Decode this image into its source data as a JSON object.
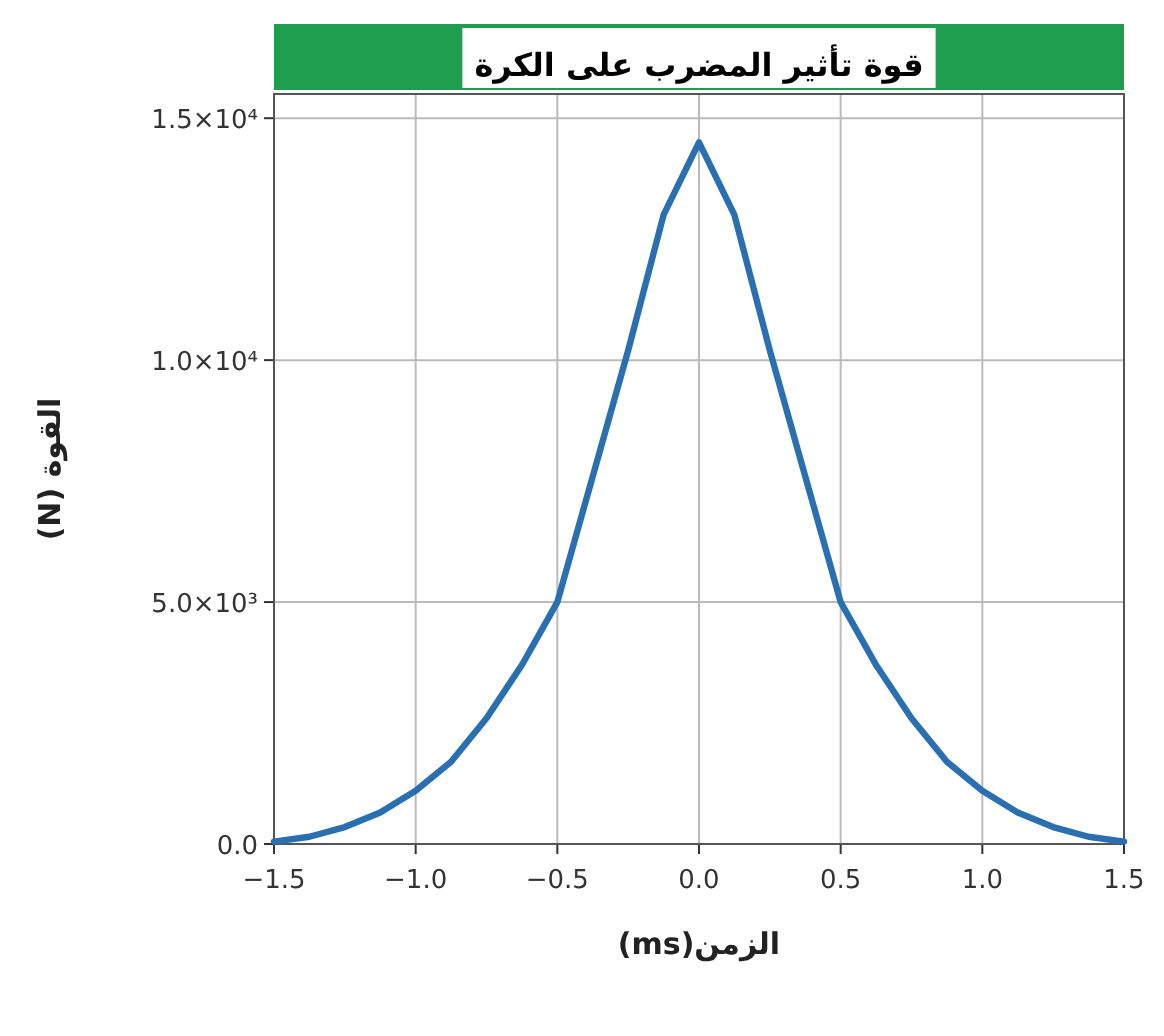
{
  "chart_data": {
    "type": "line",
    "title": "قوة تأثير المضرب على الكرة",
    "xlabel": "الزمن(ms)",
    "ylabel": "القوة (N)",
    "x": [
      -1.5,
      -1.375,
      -1.25,
      -1.125,
      -1.0,
      -0.875,
      -0.75,
      -0.625,
      -0.5,
      -0.375,
      -0.25,
      -0.125,
      0.0,
      0.125,
      0.25,
      0.375,
      0.5,
      0.625,
      0.75,
      0.875,
      1.0,
      1.125,
      1.25,
      1.375,
      1.5
    ],
    "series": [
      {
        "color": "#2a6fb0",
        "values": [
          50,
          150,
          350,
          650,
          1100,
          1700,
          2600,
          3700,
          5000,
          7600,
          10200,
          13000,
          14500,
          13000,
          10200,
          7600,
          5000,
          3700,
          2600,
          1700,
          1100,
          650,
          350,
          150,
          50
        ]
      }
    ],
    "xlim": [
      -1.5,
      1.5
    ],
    "ylim": [
      0,
      15500
    ],
    "xticks": [
      {
        "value": -1.5,
        "label": "−1.5"
      },
      {
        "value": -1.0,
        "label": "−1.0"
      },
      {
        "value": -0.5,
        "label": "−0.5"
      },
      {
        "value": 0,
        "label": "0.0"
      },
      {
        "value": 0.5,
        "label": "0.5"
      },
      {
        "value": 1.0,
        "label": "1.0"
      },
      {
        "value": 1.5,
        "label": "1.5"
      }
    ],
    "yticks": [
      {
        "value": 0,
        "label": "0.0"
      },
      {
        "value": 5000,
        "label": "5.0×10³"
      },
      {
        "value": 10000,
        "label": "1.0×10⁴"
      },
      {
        "value": 15000,
        "label": "1.5×10⁴"
      }
    ],
    "grid": true,
    "marker": "none",
    "line_style": "solid"
  }
}
